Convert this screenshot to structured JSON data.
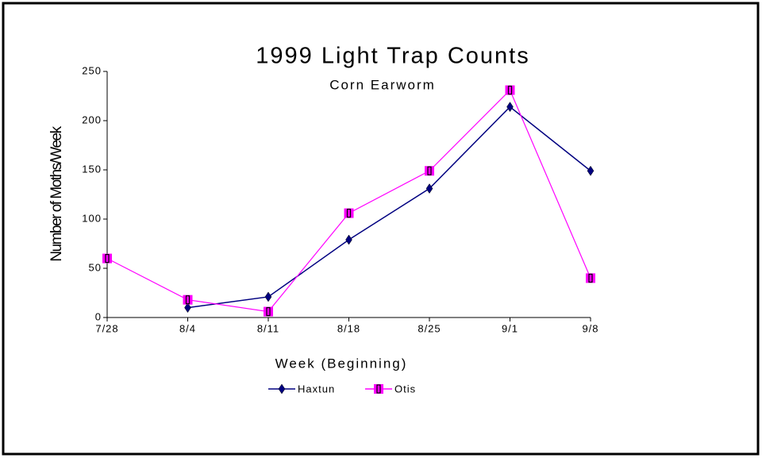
{
  "chart_data": {
    "type": "line",
    "title": "1999 Light Trap Counts",
    "subtitle": "Corn Earworm",
    "x_label": "Week (Beginning)",
    "y_label": "Number of Moths/Week",
    "categories": [
      "7/28",
      "8/4",
      "8/11",
      "8/18",
      "8/25",
      "9/1",
      "9/8"
    ],
    "series": [
      {
        "name": "Haxtun",
        "color": "#000080",
        "marker": "diamond",
        "values": [
          null,
          10,
          21,
          79,
          131,
          214,
          149
        ]
      },
      {
        "name": "Otis",
        "color": "#ff00ff",
        "marker": "square",
        "values": [
          60,
          18,
          6,
          106,
          149,
          231,
          40
        ]
      }
    ],
    "ylim": [
      0,
      250
    ],
    "yticks": [
      0,
      50,
      100,
      150,
      200,
      250
    ],
    "grid": false
  }
}
